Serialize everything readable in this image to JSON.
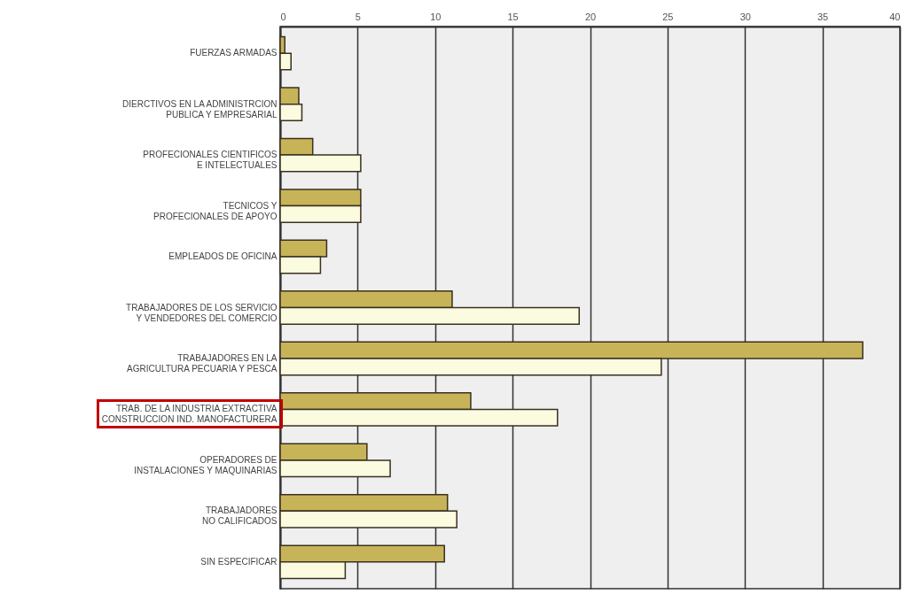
{
  "chart_data": {
    "type": "bar",
    "orientation": "horizontal",
    "categories": [
      "FUERZAS ARMADAS",
      "DIERCTIVOS EN LA ADMINISTRCION PUBLICA Y EMPRESARIAL",
      "PROFECIONALES CIENTIFICOS E INTELECTUALES",
      "TECNICOS Y PROFECIONALES DE APOYO",
      "EMPLEADOS DE OFICINA",
      "TRABAJADORES DE LOS SERVICIO Y VENDEDORES DEL COMERCIO",
      "TRABAJADORES EN LA AGRICULTURA PECUARIA Y PESCA",
      "TRAB. DE LA INDUSTRIA EXTRACTIVA CONSTRUCCION IND. MANOFACTURERA",
      "OPERADORES DE INSTALACIONES Y MAQUINARIAS",
      "TRABAJADORES NO CALIFICADOS",
      "SIN ESPECIFICAR"
    ],
    "series": [
      {
        "color": "#c8b458",
        "values": [
          0.3,
          1.2,
          2.1,
          5.2,
          3.0,
          11.1,
          37.6,
          12.3,
          5.6,
          10.8,
          10.6
        ]
      },
      {
        "color": "#fbfbe0",
        "values": [
          0.7,
          1.4,
          5.2,
          5.2,
          2.6,
          19.3,
          24.6,
          17.9,
          7.1,
          11.4,
          4.2
        ]
      }
    ],
    "xlim": [
      0,
      40
    ],
    "xticks": [
      0,
      5,
      10,
      15,
      20,
      25,
      30,
      35,
      40
    ],
    "grid": "x"
  }
}
